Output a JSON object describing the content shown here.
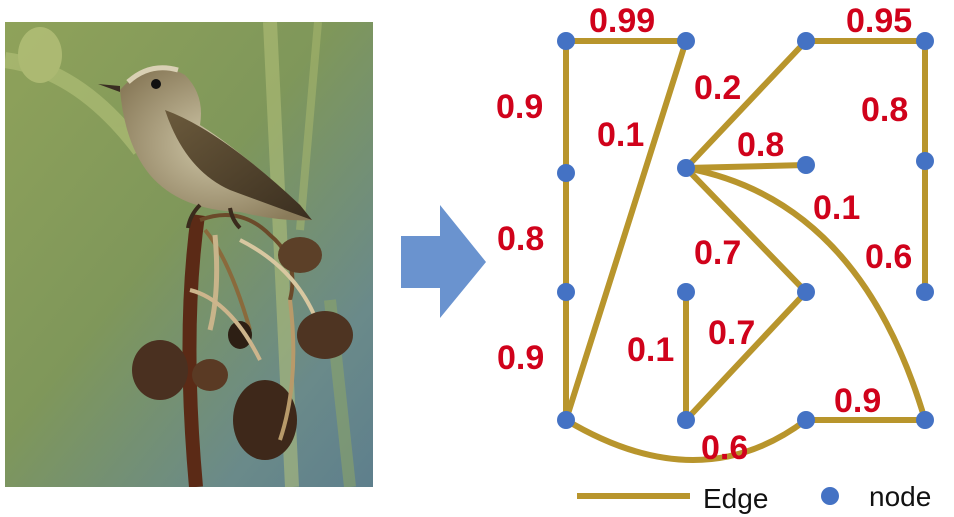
{
  "colors": {
    "edge": "#b8952c",
    "node": "#4472c4",
    "weight_text": "#d0021b",
    "arrow": "#6a93cf"
  },
  "photo": {
    "subject": "bird-on-dried-plant-stem"
  },
  "graph": {
    "weights": [
      "0.99",
      "0.95",
      "0.9",
      "0.1",
      "0.2",
      "0.8",
      "0.8",
      "0.1",
      "0.8",
      "0.7",
      "0.6",
      "0.7",
      "0.1",
      "0.9",
      "0.9",
      "0.6"
    ]
  },
  "legend": {
    "edge_label": "Edge",
    "node_label": "node"
  }
}
